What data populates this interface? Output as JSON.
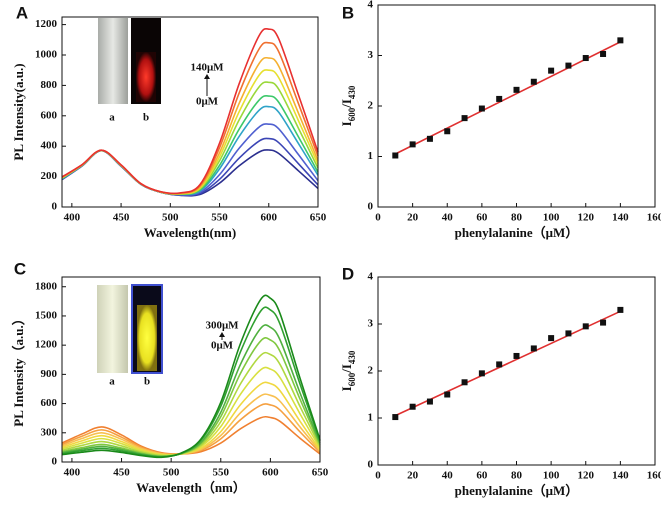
{
  "chart_data": [
    {
      "type": "line",
      "panel": "A",
      "xlabel": "Wavelength(nm)",
      "ylabel": "PL Intensity(a.u.)",
      "annotations": [
        "140μM",
        "0μM"
      ],
      "inset_labels": [
        "a",
        "b"
      ],
      "xlim": [
        390,
        650
      ],
      "xticks": [
        400,
        450,
        500,
        550,
        600,
        650
      ],
      "ylim": [
        0,
        1250
      ],
      "yticks": [
        0,
        200,
        400,
        600,
        800,
        1000,
        1200
      ],
      "x": [
        390,
        410,
        430,
        450,
        470,
        490,
        510,
        530,
        550,
        570,
        590,
        600,
        610,
        630,
        650
      ],
      "series": [
        {
          "color": "#2b2f8f",
          "values": [
            180,
            268,
            370,
            268,
            150,
            97,
            77,
            82,
            157,
            271,
            361,
            375,
            353,
            239,
            122
          ]
        },
        {
          "color": "#3b45b5",
          "values": [
            182,
            269,
            370,
            269,
            150,
            97,
            78,
            88,
            182,
            322,
            433,
            450,
            424,
            286,
            145
          ]
        },
        {
          "color": "#5060d0",
          "values": [
            184,
            270,
            371,
            270,
            151,
            98,
            80,
            96,
            213,
            387,
            525,
            545,
            515,
            346,
            173
          ]
        },
        {
          "color": "#2fa3c8",
          "values": [
            186,
            271,
            371,
            271,
            151,
            98,
            83,
            105,
            251,
            465,
            635,
            660,
            624,
            419,
            208
          ]
        },
        {
          "color": "#3cc86a",
          "values": [
            188,
            272,
            372,
            272,
            152,
            98,
            84,
            111,
            274,
            513,
            702,
            730,
            690,
            463,
            229
          ]
        },
        {
          "color": "#9ad83a",
          "values": [
            190,
            273,
            372,
            273,
            152,
            99,
            86,
            118,
            304,
            574,
            789,
            820,
            776,
            520,
            256
          ]
        },
        {
          "color": "#e6e030",
          "values": [
            192,
            274,
            373,
            274,
            153,
            99,
            87,
            124,
            330,
            628,
            865,
            900,
            852,
            570,
            280
          ]
        },
        {
          "color": "#f5b030",
          "values": [
            194,
            275,
            373,
            275,
            153,
            100,
            89,
            131,
            357,
            683,
            942,
            980,
            928,
            620,
            304
          ]
        },
        {
          "color": "#f07030",
          "values": [
            196,
            276,
            374,
            276,
            154,
            100,
            91,
            139,
            390,
            751,
            1038,
            1080,
            1023,
            683,
            334
          ]
        },
        {
          "color": "#e83030",
          "values": [
            198,
            277,
            374,
            277,
            154,
            101,
            93,
            146,
            420,
            812,
            1125,
            1170,
            1108,
            740,
            361
          ]
        }
      ]
    },
    {
      "type": "scatter",
      "panel": "B",
      "xlabel": "phenylalanine（μM）",
      "ylabel": [
        "I",
        "600",
        "/I",
        "430"
      ],
      "xlim": [
        0,
        160
      ],
      "xticks": [
        0,
        20,
        40,
        60,
        80,
        100,
        120,
        140,
        160
      ],
      "ylim": [
        0,
        4
      ],
      "yticks": [
        0,
        1,
        2,
        3,
        4
      ],
      "x": [
        10,
        20,
        30,
        40,
        50,
        60,
        70,
        80,
        90,
        100,
        110,
        120,
        130,
        140
      ],
      "series": [
        {
          "color": "#111111",
          "values": [
            1.02,
            1.24,
            1.35,
            1.5,
            1.76,
            1.95,
            2.14,
            2.32,
            2.48,
            2.7,
            2.8,
            2.95,
            3.03,
            3.3
          ]
        }
      ],
      "fit": {
        "color": "#e03030",
        "x": [
          10,
          140
        ],
        "values": [
          1.05,
          3.27
        ]
      }
    },
    {
      "type": "line",
      "panel": "C",
      "xlabel": "Wavelength（nm）",
      "ylabel": "PL Intensity（a.u.）",
      "annotations": [
        "300μM",
        "0μM"
      ],
      "inset_labels": [
        "a",
        "b"
      ],
      "xlim": [
        390,
        650
      ],
      "xticks": [
        400,
        450,
        500,
        550,
        600,
        650
      ],
      "ylim": [
        0,
        1900
      ],
      "yticks": [
        0,
        300,
        600,
        900,
        1200,
        1500,
        1800
      ],
      "x": [
        390,
        410,
        430,
        450,
        470,
        490,
        510,
        530,
        550,
        570,
        590,
        600,
        610,
        630,
        650
      ],
      "series": [
        {
          "color": "#f08030",
          "values": [
            195,
            287,
            360,
            278,
            162,
            96,
            83,
            106,
            194,
            342,
            453,
            457,
            415,
            243,
            83
          ]
        },
        {
          "color": "#f5a040",
          "values": [
            180,
            264,
            330,
            255,
            150,
            90,
            83,
            120,
            238,
            435,
            581,
            586,
            531,
            308,
            99
          ]
        },
        {
          "color": "#f8c050",
          "values": [
            165,
            241,
            300,
            233,
            138,
            84,
            82,
            130,
            272,
            506,
            679,
            685,
            620,
            358,
            111
          ]
        },
        {
          "color": "#f0d840",
          "values": [
            150,
            217,
            270,
            210,
            126,
            78,
            82,
            141,
            312,
            591,
            797,
            805,
            728,
            417,
            124
          ]
        },
        {
          "color": "#d8e040",
          "values": [
            135,
            194,
            240,
            188,
            114,
            72,
            83,
            157,
            363,
            698,
            945,
            954,
            862,
            492,
            142
          ]
        },
        {
          "color": "#b0d840",
          "values": [
            120,
            170,
            210,
            165,
            102,
            66,
            84,
            172,
            414,
            805,
            1093,
            1104,
            997,
            567,
            160
          ]
        },
        {
          "color": "#80c840",
          "values": [
            105,
            147,
            180,
            143,
            90,
            60,
            85,
            188,
            465,
            913,
            1241,
            1253,
            1131,
            642,
            178
          ]
        },
        {
          "color": "#50b040",
          "values": [
            95,
            131,
            160,
            128,
            82,
            56,
            87,
            202,
            510,
            1006,
            1370,
            1383,
            1248,
            706,
            193
          ]
        },
        {
          "color": "#30a030",
          "values": [
            85,
            116,
            140,
            113,
            74,
            52,
            89,
            223,
            572,
            1135,
            1547,
            1562,
            1409,
            796,
            215
          ]
        },
        {
          "color": "#1a8a1a",
          "values": [
            75,
            100,
            120,
            98,
            66,
            48,
            91,
            235,
            613,
            1221,
            1666,
            1682,
            1517,
            856,
            229
          ]
        }
      ]
    },
    {
      "type": "scatter",
      "panel": "D",
      "xlabel": "phenylalanine（μM）",
      "ylabel": [
        "I",
        "600",
        "/I",
        "430"
      ],
      "xlim": [
        0,
        160
      ],
      "xticks": [
        0,
        20,
        40,
        60,
        80,
        100,
        120,
        140,
        160
      ],
      "ylim": [
        0,
        4
      ],
      "yticks": [
        0,
        1,
        2,
        3,
        4
      ],
      "x": [
        10,
        20,
        30,
        40,
        50,
        60,
        70,
        80,
        90,
        100,
        110,
        120,
        130,
        140
      ],
      "series": [
        {
          "color": "#111111",
          "values": [
            1.02,
            1.24,
            1.35,
            1.5,
            1.76,
            1.95,
            2.14,
            2.32,
            2.48,
            2.7,
            2.8,
            2.95,
            3.03,
            3.3
          ]
        }
      ],
      "fit": {
        "color": "#e03030",
        "x": [
          10,
          140
        ],
        "values": [
          1.05,
          3.27
        ]
      }
    }
  ]
}
